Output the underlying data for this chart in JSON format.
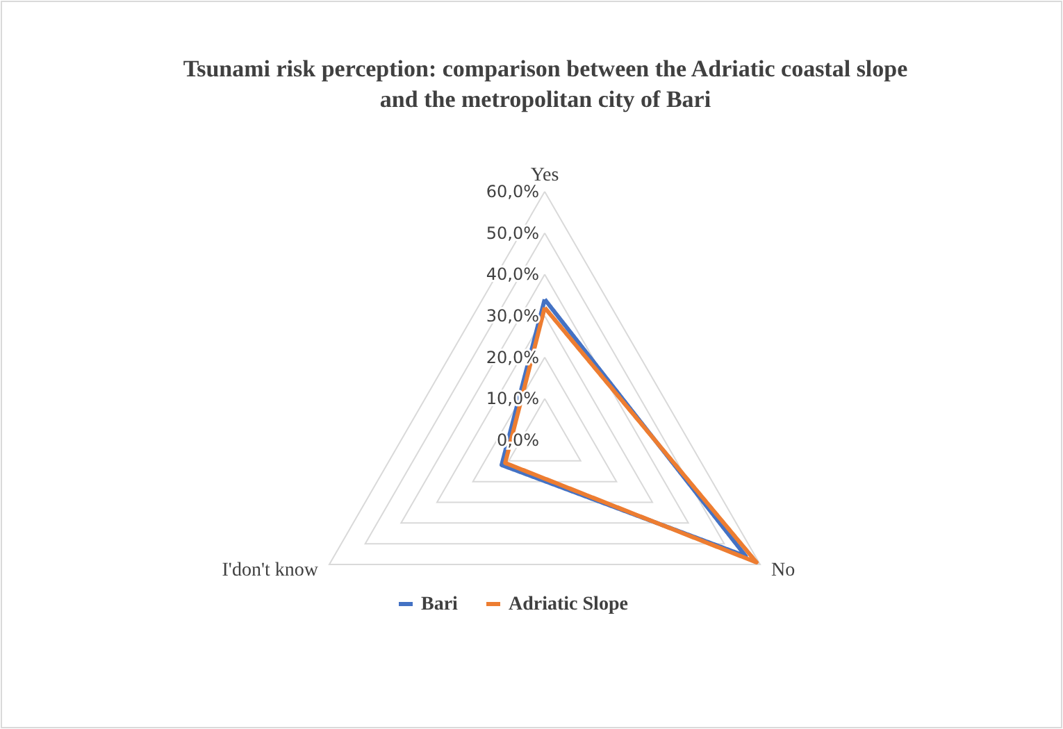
{
  "chart_data": {
    "type": "radar",
    "title": "Tsunami risk perception: comparison between the Adriatic coastal slope and the metropolitan city of Bari",
    "categories": [
      "Yes",
      "No",
      "I'don't know"
    ],
    "series": [
      {
        "name": "Bari",
        "color": "#4472c4",
        "values": [
          34,
          56,
          12
        ]
      },
      {
        "name": "Adriatic Slope",
        "color": "#ed7d31",
        "values": [
          32,
          59,
          11
        ]
      }
    ],
    "ylim": [
      0,
      60
    ],
    "yticks": [
      {
        "value": 0,
        "label": "0,0%"
      },
      {
        "value": 10,
        "label": "10,0%"
      },
      {
        "value": 20,
        "label": "20,0%"
      },
      {
        "value": 30,
        "label": "30,0%"
      },
      {
        "value": 40,
        "label": "40,0%"
      },
      {
        "value": 50,
        "label": "50,0%"
      },
      {
        "value": 60,
        "label": "60,0%"
      }
    ],
    "grid": true,
    "legend": "bottom",
    "marker": "none",
    "line_style": "solid"
  }
}
